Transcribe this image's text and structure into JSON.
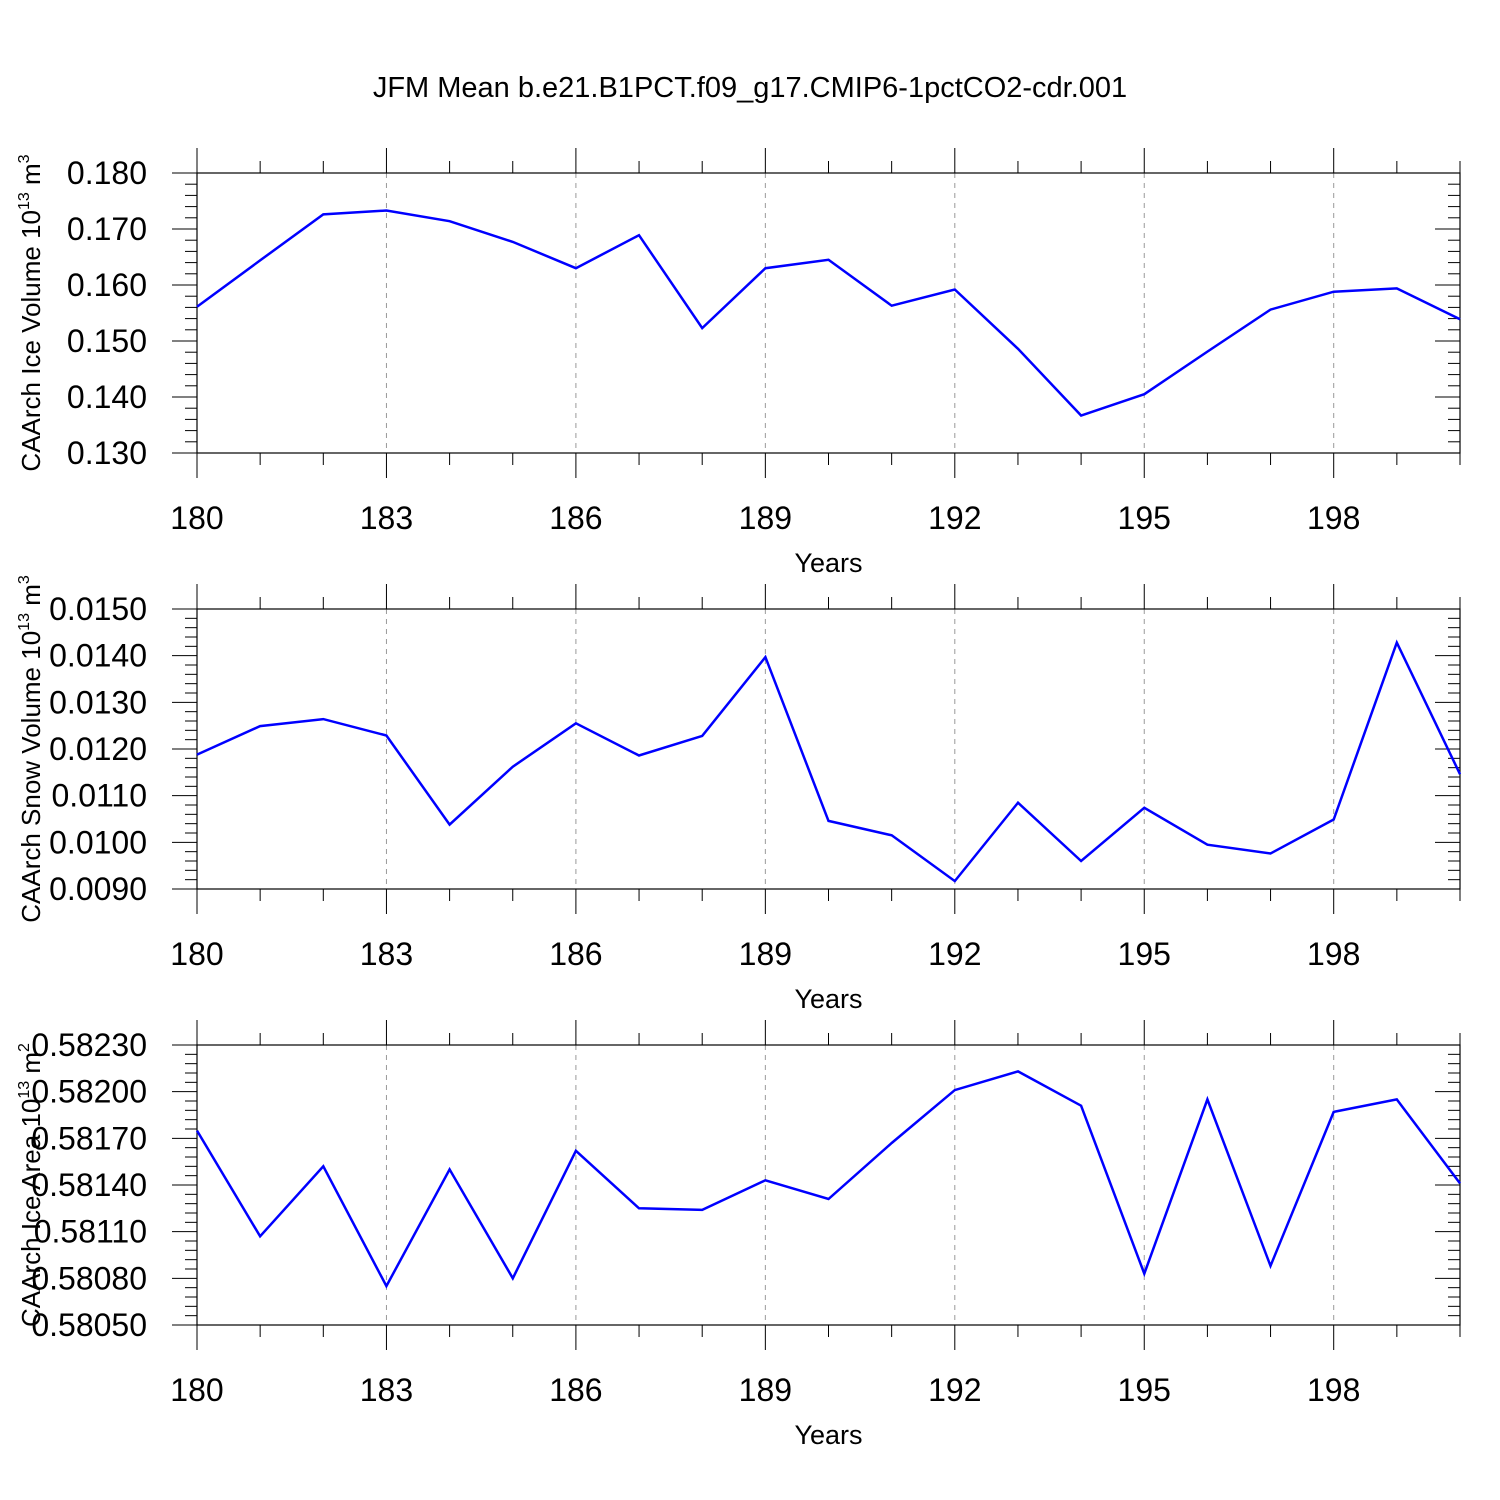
{
  "title": "JFM Mean b.e21.B1PCT.f09_g17.CMIP6-1pctCO2-cdr.001",
  "chart_data": [
    {
      "type": "line",
      "title": "",
      "xlabel": "Years",
      "ylabel": "CAArch Ice Volume 10",
      "ylabel_exp": "13",
      "ylabel_unit": "m",
      "ylabel_unit_exp": "3",
      "xlim": [
        180,
        200
      ],
      "ylim": [
        0.13,
        0.18
      ],
      "xticks": [
        180,
        183,
        186,
        189,
        192,
        195,
        198
      ],
      "yticks": [
        "0.130",
        "0.140",
        "0.150",
        "0.160",
        "0.170",
        "0.180"
      ],
      "grid": "vertical dashed at major x ticks",
      "color": "#0000ff",
      "series": [
        {
          "x": [
            180,
            181,
            182,
            183,
            184,
            185,
            186,
            187,
            188,
            189,
            190,
            191,
            192,
            193,
            194,
            195,
            196,
            197,
            198,
            199,
            200
          ],
          "values": [
            0.1561,
            0.1644,
            0.1726,
            0.1733,
            0.1714,
            0.1677,
            0.163,
            0.1689,
            0.1523,
            0.163,
            0.1645,
            0.1563,
            0.1592,
            0.1486,
            0.1367,
            0.1405,
            0.1481,
            0.1556,
            0.1588,
            0.1594,
            0.1539
          ]
        }
      ]
    },
    {
      "type": "line",
      "title": "",
      "xlabel": "Years",
      "ylabel": "CAArch Snow Volume 10",
      "ylabel_exp": "13",
      "ylabel_unit": "m",
      "ylabel_unit_exp": "3",
      "xlim": [
        180,
        200
      ],
      "ylim": [
        0.009,
        0.015
      ],
      "xticks": [
        180,
        183,
        186,
        189,
        192,
        195,
        198
      ],
      "yticks": [
        "0.0090",
        "0.0100",
        "0.0110",
        "0.0120",
        "0.0130",
        "0.0140",
        "0.0150"
      ],
      "grid": "vertical dashed at major x ticks",
      "color": "#0000ff",
      "series": [
        {
          "x": [
            180,
            181,
            182,
            183,
            184,
            185,
            186,
            187,
            188,
            189,
            190,
            191,
            192,
            193,
            194,
            195,
            196,
            197,
            198,
            199,
            200
          ],
          "values": [
            0.01188,
            0.01249,
            0.01264,
            0.01229,
            0.01038,
            0.01162,
            0.01255,
            0.01186,
            0.01228,
            0.01397,
            0.01046,
            0.01015,
            0.00917,
            0.01085,
            0.0096,
            0.01074,
            0.00995,
            0.00976,
            0.01049,
            0.01428,
            0.01146
          ]
        }
      ]
    },
    {
      "type": "line",
      "title": "",
      "xlabel": "Years",
      "ylabel": "CAArch Ice Area 10",
      "ylabel_exp": "13",
      "ylabel_unit": "m",
      "ylabel_unit_exp": "2",
      "xlim": [
        180,
        200
      ],
      "ylim": [
        0.5805,
        0.5823
      ],
      "xticks": [
        180,
        183,
        186,
        189,
        192,
        195,
        198
      ],
      "yticks": [
        "0.58050",
        "0.58080",
        "0.58110",
        "0.58140",
        "0.58170",
        "0.58200",
        "0.58230"
      ],
      "grid": "vertical dashed at major x ticks",
      "color": "#0000ff",
      "series": [
        {
          "x": [
            180,
            181,
            182,
            183,
            184,
            185,
            186,
            187,
            188,
            189,
            190,
            191,
            192,
            193,
            194,
            195,
            196,
            197,
            198,
            199,
            200
          ],
          "values": [
            0.58175,
            0.58107,
            0.58152,
            0.58075,
            0.5815,
            0.5808,
            0.58162,
            0.58125,
            0.58124,
            0.58143,
            0.58131,
            0.58167,
            0.58201,
            0.58213,
            0.58191,
            0.58083,
            0.58195,
            0.58088,
            0.58187,
            0.58195,
            0.58141
          ]
        }
      ]
    }
  ]
}
